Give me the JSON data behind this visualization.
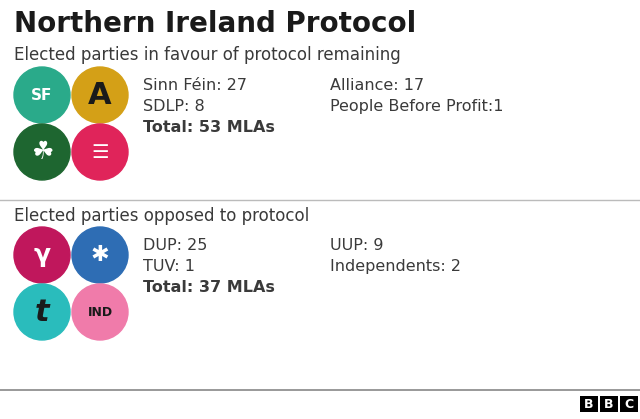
{
  "title": "Northern Ireland Protocol",
  "section1_heading": "Elected parties in favour of protocol remaining",
  "section2_heading": "Elected parties opposed to protocol",
  "favour_col1_lines": [
    "Sinn Féin: 27",
    "SDLP: 8",
    "Total: 53 MLAs"
  ],
  "favour_col1_bold": [
    false,
    false,
    true
  ],
  "favour_col2_lines": [
    "Alliance: 17",
    "People Before Profit:1"
  ],
  "oppose_col1_lines": [
    "DUP: 25",
    "TUV: 1",
    "Total: 37 MLAs"
  ],
  "oppose_col1_bold": [
    false,
    false,
    true
  ],
  "oppose_col2_lines": [
    "UUP: 9",
    "Independents: 2"
  ],
  "bg": "#ffffff",
  "title_color": "#1a1a1a",
  "heading_color": "#3a3a3a",
  "text_color": "#3a3a3a",
  "divider_color": "#bbbbbb",
  "logo_favour_colors": [
    "#2aaa8a",
    "#d4a017",
    "#1e6630",
    "#e0245a"
  ],
  "logo_oppose_colors": [
    "#c0175c",
    "#2e6db4",
    "#2abcbc",
    "#f07baa"
  ],
  "logo_r": 28
}
